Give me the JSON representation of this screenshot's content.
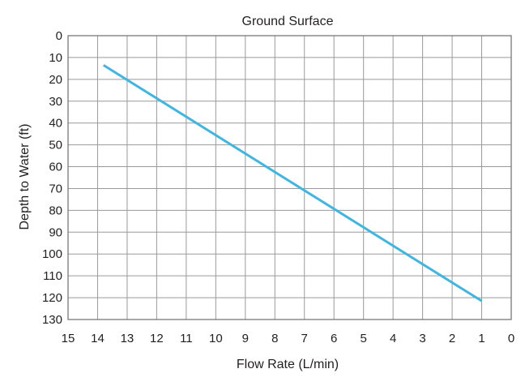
{
  "chart_data": {
    "type": "line",
    "title": "Ground Surface",
    "xlabel": "Flow Rate (L/min)",
    "ylabel": "Depth to Water (ft)",
    "xlim": [
      15,
      0
    ],
    "ylim": [
      0,
      130
    ],
    "x_ticks": [
      "15",
      "14",
      "13",
      "12",
      "11",
      "10",
      "9",
      "8",
      "7",
      "6",
      "5",
      "4",
      "3",
      "2",
      "1",
      "0"
    ],
    "y_ticks": [
      "0",
      "10",
      "20",
      "30",
      "40",
      "50",
      "60",
      "70",
      "80",
      "90",
      "100",
      "110",
      "120",
      "130"
    ],
    "x_reversed": true,
    "y_inverted": true,
    "grid": true,
    "series": [
      {
        "x": [
          13.8,
          1.0
        ],
        "y": [
          13.5,
          121.5
        ],
        "color": "#3fb5e2"
      }
    ]
  }
}
